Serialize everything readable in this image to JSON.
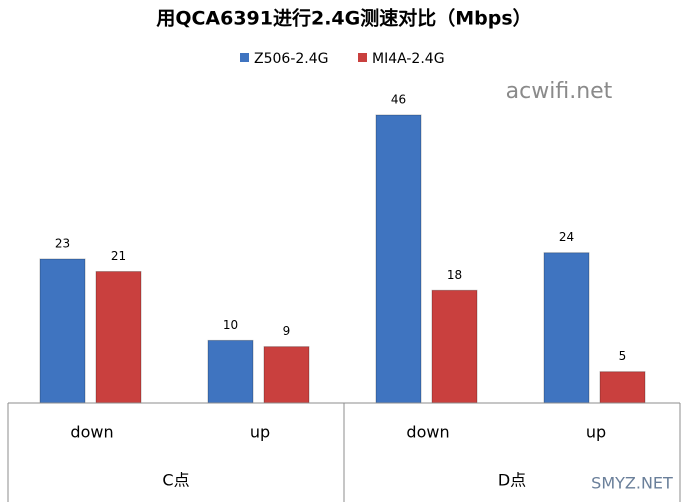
{
  "chart_data": {
    "type": "bar",
    "title": "用QCA6391进行2.4G测速对比（Mbps）",
    "categories": [
      "down",
      "up",
      "down",
      "up"
    ],
    "category_groups": [
      "C点",
      "D点"
    ],
    "series": [
      {
        "name": "Z506-2.4G",
        "color": "#3f74c0",
        "values": [
          23,
          10,
          46,
          24
        ]
      },
      {
        "name": "MI4A-2.4G",
        "color": "#c9403e",
        "values": [
          21,
          9,
          18,
          5
        ]
      }
    ],
    "legend": "top",
    "watermarks": [
      "acwifi.net",
      "SMYZ.NET"
    ]
  }
}
